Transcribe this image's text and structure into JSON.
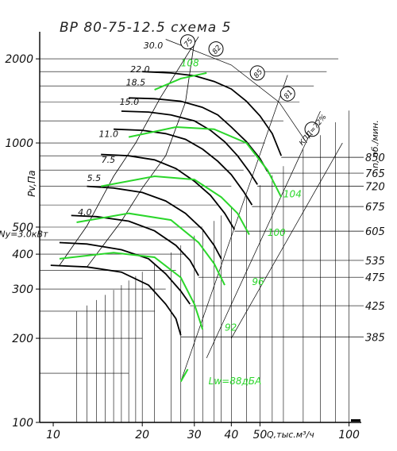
{
  "chart_data": {
    "type": "line",
    "title": "ВР 80-75-12.5   схема 5",
    "xlabel": "Q,тыс.м³/ч",
    "ylabel": "Pv,Па",
    "right_label": "n, об./мин.",
    "x_scale": "log",
    "y_scale": "log",
    "xlim": [
      9,
      110
    ],
    "ylim": [
      100,
      2500
    ],
    "x_ticks": [
      {
        "value": 10,
        "label": "10"
      },
      {
        "value": 20,
        "label": "20"
      },
      {
        "value": 30,
        "label": "30"
      },
      {
        "value": 40,
        "label": "40"
      },
      {
        "value": 50,
        "label": "50"
      },
      {
        "value": 100,
        "label": "100"
      }
    ],
    "y_ticks": [
      {
        "value": 100,
        "label": "100"
      },
      {
        "value": 200,
        "label": "200"
      },
      {
        "value": 300,
        "label": "300"
      },
      {
        "value": 400,
        "label": "400"
      },
      {
        "value": 500,
        "label": "500"
      },
      {
        "value": 1000,
        "label": "1000"
      },
      {
        "value": 2000,
        "label": "2000"
      }
    ],
    "speed_labels": [
      {
        "value": 850,
        "label": "850"
      },
      {
        "value": 765,
        "label": "765"
      },
      {
        "value": 720,
        "label": "720"
      },
      {
        "value": 675,
        "label": "675"
      },
      {
        "value": 605,
        "label": "605"
      },
      {
        "value": 535,
        "label": "535"
      },
      {
        "value": 475,
        "label": "475"
      },
      {
        "value": 425,
        "label": "425"
      },
      {
        "value": 385,
        "label": "385"
      }
    ],
    "power_labels": [
      {
        "label": "30.0",
        "x": 23.5,
        "y": 2180
      },
      {
        "label": "22.0",
        "x": 21.2,
        "y": 1790
      },
      {
        "label": "18.5",
        "x": 20.5,
        "y": 1610
      },
      {
        "label": "15.0",
        "x": 19.5,
        "y": 1370
      },
      {
        "label": "11.0",
        "x": 16.6,
        "y": 1050
      },
      {
        "label": "7.5",
        "x": 16.2,
        "y": 850
      },
      {
        "label": "5.5",
        "x": 14.5,
        "y": 730
      },
      {
        "label": "4.0",
        "x": 13.5,
        "y": 552
      },
      {
        "label": "Ny=3.0кВт",
        "x": 9.6,
        "y": 460
      }
    ],
    "efficiency_labels": [
      {
        "label": "75",
        "x": 28.5,
        "y": 2300
      },
      {
        "label": "82",
        "x": 35.5,
        "y": 2170
      },
      {
        "label": "85",
        "x": 49,
        "y": 1780
      },
      {
        "label": "81",
        "x": 62,
        "y": 1500
      },
      {
        "label": "КПД=72%",
        "x": 75,
        "y": 1120
      }
    ],
    "noise_labels": [
      {
        "label": "108",
        "x": 27,
        "y": 1880
      },
      {
        "label": "104",
        "x": 60,
        "y": 640
      },
      {
        "label": "100",
        "x": 53,
        "y": 465
      },
      {
        "label": "96",
        "x": 47,
        "y": 310
      },
      {
        "label": "92",
        "x": 38,
        "y": 213
      },
      {
        "label": "Lw=88дБА",
        "x": 33.5,
        "y": 137
      }
    ],
    "series": [
      {
        "n": 850,
        "points": [
          [
            20,
            1800
          ],
          [
            25,
            1780
          ],
          [
            30,
            1740
          ],
          [
            35,
            1660
          ],
          [
            40,
            1560
          ],
          [
            45,
            1410
          ],
          [
            50,
            1250
          ],
          [
            55,
            1080
          ],
          [
            59,
            900
          ]
        ]
      },
      {
        "n": 765,
        "points": [
          [
            18,
            1450
          ],
          [
            22,
            1440
          ],
          [
            27,
            1410
          ],
          [
            32,
            1340
          ],
          [
            36,
            1260
          ],
          [
            40,
            1140
          ],
          [
            45,
            1010
          ],
          [
            50,
            880
          ],
          [
            53,
            790
          ]
        ]
      },
      {
        "n": 720,
        "points": [
          [
            17,
            1300
          ],
          [
            21,
            1290
          ],
          [
            25,
            1260
          ],
          [
            30,
            1200
          ],
          [
            34,
            1110
          ],
          [
            38,
            1010
          ],
          [
            42,
            900
          ],
          [
            46,
            790
          ],
          [
            49,
            710
          ]
        ]
      },
      {
        "n": 675,
        "points": [
          [
            16,
            1120
          ],
          [
            20,
            1110
          ],
          [
            24,
            1080
          ],
          [
            28,
            1030
          ],
          [
            32,
            950
          ],
          [
            36,
            860
          ],
          [
            40,
            770
          ],
          [
            44,
            670
          ],
          [
            47,
            600
          ]
        ]
      },
      {
        "n": 605,
        "points": [
          [
            14.5,
            910
          ],
          [
            18,
            900
          ],
          [
            22,
            870
          ],
          [
            26,
            810
          ],
          [
            30,
            730
          ],
          [
            34,
            650
          ],
          [
            38,
            560
          ],
          [
            41,
            490
          ]
        ]
      },
      {
        "n": 535,
        "points": [
          [
            13,
            700
          ],
          [
            16,
            690
          ],
          [
            20,
            665
          ],
          [
            24,
            620
          ],
          [
            28,
            560
          ],
          [
            32,
            490
          ],
          [
            35,
            430
          ],
          [
            37,
            385
          ]
        ]
      },
      {
        "n": 475,
        "points": [
          [
            11.5,
            550
          ],
          [
            14,
            545
          ],
          [
            18,
            525
          ],
          [
            22,
            485
          ],
          [
            26,
            430
          ],
          [
            29,
            380
          ],
          [
            31,
            335
          ]
        ]
      },
      {
        "n": 425,
        "points": [
          [
            10.5,
            440
          ],
          [
            13,
            435
          ],
          [
            17,
            415
          ],
          [
            21,
            385
          ],
          [
            24,
            340
          ],
          [
            27,
            295
          ],
          [
            29,
            265
          ]
        ]
      },
      {
        "n": 385,
        "points": [
          [
            9.8,
            365
          ],
          [
            13,
            360
          ],
          [
            17,
            345
          ],
          [
            21,
            310
          ],
          [
            24,
            265
          ],
          [
            26,
            235
          ],
          [
            27,
            205
          ]
        ]
      },
      {
        "n": 0,
        "label": "KPD 72 left",
        "points": [
          [
            10.5,
            365
          ],
          [
            13,
            505
          ],
          [
            16,
            760
          ],
          [
            19,
            1000
          ],
          [
            23,
            1450
          ],
          [
            27,
            1900
          ],
          [
            31,
            2400
          ]
        ]
      },
      {
        "n": 0,
        "label": "KPD 75",
        "points": [
          [
            13,
            360
          ],
          [
            17,
            525
          ],
          [
            20,
            690
          ],
          [
            24,
            900
          ],
          [
            28,
            1400
          ],
          [
            30,
            2300
          ]
        ]
      }
    ],
    "noise_curves": [
      {
        "label": "108",
        "points": [
          [
            22,
            1550
          ],
          [
            27,
            1700
          ],
          [
            33,
            1780
          ]
        ]
      },
      {
        "label": "104",
        "points": [
          [
            18,
            1050
          ],
          [
            26,
            1140
          ],
          [
            35,
            1120
          ],
          [
            45,
            1000
          ],
          [
            53,
            800
          ],
          [
            59,
            640
          ]
        ]
      },
      {
        "label": "100",
        "points": [
          [
            14.5,
            700
          ],
          [
            22,
            760
          ],
          [
            30,
            740
          ],
          [
            37,
            640
          ],
          [
            42,
            560
          ],
          [
            46,
            470
          ]
        ]
      },
      {
        "label": "96",
        "points": [
          [
            12,
            520
          ],
          [
            18,
            560
          ],
          [
            25,
            530
          ],
          [
            31,
            440
          ],
          [
            35,
            370
          ],
          [
            38,
            310
          ]
        ]
      },
      {
        "label": "92",
        "points": [
          [
            10.5,
            385
          ],
          [
            16,
            405
          ],
          [
            22,
            390
          ],
          [
            27,
            330
          ],
          [
            30,
            265
          ],
          [
            32,
            215
          ]
        ]
      },
      {
        "label": "88",
        "points": [
          [
            27,
            140
          ],
          [
            28.5,
            155
          ]
        ]
      }
    ]
  }
}
